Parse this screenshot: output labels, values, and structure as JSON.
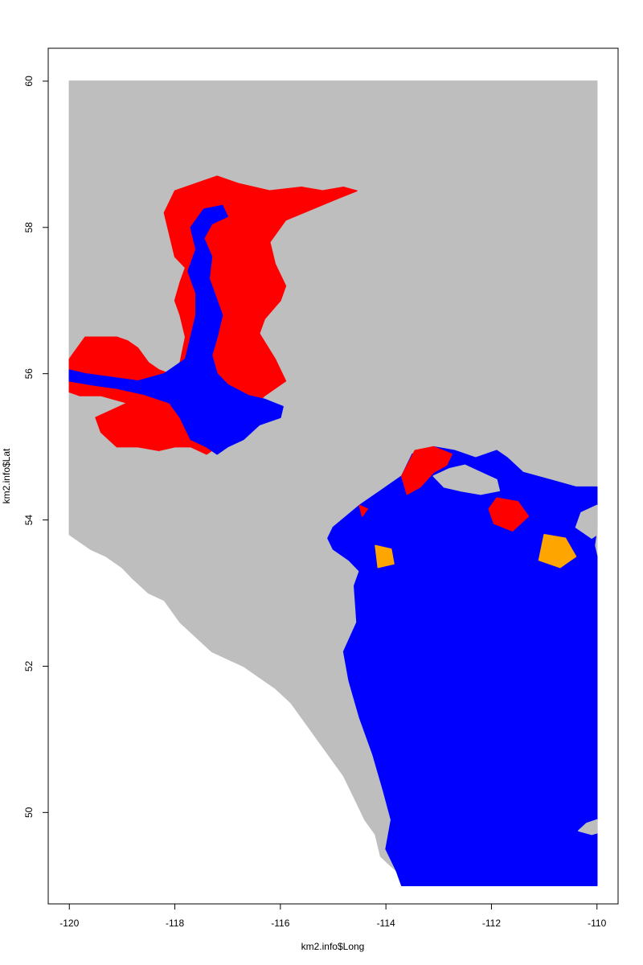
{
  "chart_data": {
    "type": "scatter",
    "title": "",
    "xlabel": "km2.info$Long",
    "ylabel": "km2.info$Lat",
    "xlim": [
      -120.4,
      -109.6
    ],
    "ylim": [
      48.75,
      60.45
    ],
    "x_ticks": [
      -120,
      -118,
      -116,
      -114,
      -112,
      -110
    ],
    "y_ticks": [
      50,
      52,
      54,
      56,
      58,
      60
    ],
    "x_tick_labels": [
      "-120",
      "-118",
      "-116",
      "-114",
      "-112",
      "-110"
    ],
    "y_tick_labels": [
      "50",
      "52",
      "54",
      "56",
      "58",
      "60"
    ],
    "grid": false,
    "legend": "none",
    "colors": {
      "background_cells": "#bebebe",
      "high": "#ff0000",
      "mid": "#ffa500",
      "low_white": "#ffffff",
      "low": "#0000ff"
    },
    "series": [
      {
        "color": "#bebebe",
        "polygon": [
          [
            -120,
            60
          ],
          [
            -110,
            60
          ],
          [
            -110,
            49
          ],
          [
            -113.7,
            49
          ],
          [
            -113.8,
            49.2
          ],
          [
            -114.1,
            49.4
          ],
          [
            -114.2,
            49.7
          ],
          [
            -114.4,
            49.9
          ],
          [
            -114.6,
            50.2
          ],
          [
            -114.8,
            50.5
          ],
          [
            -115.1,
            50.8
          ],
          [
            -115.3,
            51.0
          ],
          [
            -115.6,
            51.3
          ],
          [
            -115.8,
            51.5
          ],
          [
            -116.1,
            51.7
          ],
          [
            -116.4,
            51.85
          ],
          [
            -116.7,
            52.0
          ],
          [
            -117.0,
            52.1
          ],
          [
            -117.3,
            52.2
          ],
          [
            -117.6,
            52.4
          ],
          [
            -117.9,
            52.6
          ],
          [
            -118.2,
            52.9
          ],
          [
            -118.5,
            53.0
          ],
          [
            -118.8,
            53.2
          ],
          [
            -119.0,
            53.35
          ],
          [
            -119.3,
            53.5
          ],
          [
            -119.6,
            53.6
          ],
          [
            -119.8,
            53.7
          ],
          [
            -120,
            53.8
          ]
        ]
      },
      {
        "color": "#ff0000",
        "polygon": [
          [
            -120,
            56.2
          ],
          [
            -119.9,
            56.3
          ],
          [
            -119.7,
            56.5
          ],
          [
            -119.5,
            56.5
          ],
          [
            -119.3,
            56.5
          ],
          [
            -119.1,
            56.5
          ],
          [
            -118.9,
            56.45
          ],
          [
            -118.7,
            56.35
          ],
          [
            -118.5,
            56.15
          ],
          [
            -118.3,
            56.05
          ],
          [
            -118.1,
            56.0
          ],
          [
            -117.9,
            56.15
          ],
          [
            -117.8,
            56.5
          ],
          [
            -117.9,
            56.8
          ],
          [
            -118.0,
            57.0
          ],
          [
            -117.9,
            57.25
          ],
          [
            -117.8,
            57.45
          ],
          [
            -118.0,
            57.6
          ],
          [
            -118.1,
            57.9
          ],
          [
            -118.2,
            58.2
          ],
          [
            -118.0,
            58.5
          ],
          [
            -117.6,
            58.6
          ],
          [
            -117.2,
            58.7
          ],
          [
            -116.8,
            58.6
          ],
          [
            -116.2,
            58.5
          ],
          [
            -115.6,
            58.55
          ],
          [
            -115.2,
            58.5
          ],
          [
            -114.8,
            58.55
          ],
          [
            -114.55,
            58.5
          ],
          [
            -114.9,
            58.4
          ],
          [
            -115.4,
            58.25
          ],
          [
            -115.9,
            58.1
          ],
          [
            -116.2,
            57.8
          ],
          [
            -116.1,
            57.5
          ],
          [
            -115.9,
            57.2
          ],
          [
            -116.0,
            57.0
          ],
          [
            -116.3,
            56.75
          ],
          [
            -116.4,
            56.55
          ],
          [
            -116.1,
            56.2
          ],
          [
            -115.9,
            55.9
          ],
          [
            -116.3,
            55.7
          ],
          [
            -116.6,
            55.5
          ],
          [
            -116.9,
            55.3
          ],
          [
            -117.2,
            55.0
          ],
          [
            -117.4,
            54.9
          ],
          [
            -117.7,
            55.0
          ],
          [
            -118.0,
            55.0
          ],
          [
            -118.3,
            54.95
          ],
          [
            -118.7,
            55.0
          ],
          [
            -119.1,
            55.0
          ],
          [
            -119.4,
            55.2
          ],
          [
            -119.5,
            55.4
          ],
          [
            -119.2,
            55.5
          ],
          [
            -118.9,
            55.6
          ],
          [
            -119.4,
            55.7
          ],
          [
            -119.8,
            55.7
          ],
          [
            -120,
            55.75
          ]
        ]
      },
      {
        "color": "#0000ff",
        "polygon": [
          [
            -117.7,
            55.1
          ],
          [
            -117.4,
            55.0
          ],
          [
            -117.2,
            54.9
          ],
          [
            -117.0,
            55.0
          ],
          [
            -116.7,
            55.1
          ],
          [
            -116.4,
            55.3
          ],
          [
            -116.0,
            55.4
          ],
          [
            -115.95,
            55.55
          ],
          [
            -116.3,
            55.65
          ],
          [
            -116.6,
            55.7
          ],
          [
            -117.0,
            55.85
          ],
          [
            -117.2,
            56.0
          ],
          [
            -117.3,
            56.25
          ],
          [
            -117.2,
            56.5
          ],
          [
            -117.1,
            56.8
          ],
          [
            -117.2,
            57.0
          ],
          [
            -117.35,
            57.3
          ],
          [
            -117.3,
            57.6
          ],
          [
            -117.45,
            57.85
          ],
          [
            -117.3,
            58.05
          ],
          [
            -117.0,
            58.15
          ],
          [
            -117.1,
            58.3
          ],
          [
            -117.45,
            58.25
          ],
          [
            -117.7,
            58.0
          ],
          [
            -117.6,
            57.7
          ],
          [
            -117.75,
            57.4
          ],
          [
            -117.6,
            57.1
          ],
          [
            -117.6,
            56.8
          ],
          [
            -117.7,
            56.5
          ],
          [
            -117.8,
            56.2
          ],
          [
            -118.2,
            56.0
          ],
          [
            -118.7,
            55.9
          ],
          [
            -119.2,
            55.95
          ],
          [
            -119.7,
            56.0
          ],
          [
            -120,
            56.05
          ],
          [
            -120,
            55.9
          ],
          [
            -119.6,
            55.85
          ],
          [
            -119.1,
            55.8
          ],
          [
            -118.6,
            55.72
          ],
          [
            -118.1,
            55.6
          ],
          [
            -117.9,
            55.4
          ]
        ]
      },
      {
        "color": "#0000ff",
        "polygon": [
          [
            -115.0,
            53.9
          ],
          [
            -114.5,
            54.2
          ],
          [
            -114.1,
            54.4
          ],
          [
            -113.7,
            54.6
          ],
          [
            -113.5,
            54.9
          ],
          [
            -113.1,
            55.0
          ],
          [
            -112.7,
            54.95
          ],
          [
            -112.3,
            54.85
          ],
          [
            -111.9,
            54.95
          ],
          [
            -111.7,
            54.85
          ],
          [
            -111.4,
            54.65
          ],
          [
            -110.9,
            54.55
          ],
          [
            -110.4,
            54.45
          ],
          [
            -110.0,
            54.45
          ],
          [
            -110.0,
            53.9
          ],
          [
            -110.05,
            53.65
          ],
          [
            -110.0,
            53.5
          ],
          [
            -110.0,
            49
          ],
          [
            -113.7,
            49
          ],
          [
            -113.8,
            49.2
          ],
          [
            -114.0,
            49.5
          ],
          [
            -113.9,
            49.9
          ],
          [
            -114.05,
            50.3
          ],
          [
            -114.25,
            50.8
          ],
          [
            -114.5,
            51.3
          ],
          [
            -114.7,
            51.8
          ],
          [
            -114.8,
            52.2
          ],
          [
            -114.55,
            52.6
          ],
          [
            -114.6,
            53.1
          ],
          [
            -114.5,
            53.3
          ],
          [
            -114.7,
            53.45
          ],
          [
            -115.0,
            53.6
          ],
          [
            -115.1,
            53.75
          ]
        ]
      },
      {
        "color": "#bebebe",
        "polygon": [
          [
            -113.1,
            54.6
          ],
          [
            -112.8,
            54.7
          ],
          [
            -112.5,
            54.75
          ],
          [
            -112.2,
            54.65
          ],
          [
            -111.9,
            54.55
          ],
          [
            -111.85,
            54.4
          ],
          [
            -112.2,
            54.35
          ],
          [
            -112.6,
            54.4
          ],
          [
            -112.9,
            54.45
          ]
        ]
      },
      {
        "color": "#bebebe",
        "polygon": [
          [
            -110.0,
            54.2
          ],
          [
            -110.3,
            54.1
          ],
          [
            -110.4,
            53.9
          ],
          [
            -110.1,
            53.75
          ],
          [
            -110.0,
            53.8
          ]
        ]
      },
      {
        "color": "#bebebe",
        "polygon": [
          [
            -110.0,
            49.9
          ],
          [
            -110.2,
            49.85
          ],
          [
            -110.35,
            49.75
          ],
          [
            -110.1,
            49.7
          ],
          [
            -110.0,
            49.72
          ]
        ]
      },
      {
        "color": "#ff0000",
        "polygon": [
          [
            -113.45,
            54.95
          ],
          [
            -113.1,
            55.0
          ],
          [
            -112.75,
            54.9
          ],
          [
            -112.85,
            54.75
          ],
          [
            -113.1,
            54.65
          ],
          [
            -113.35,
            54.45
          ],
          [
            -113.6,
            54.35
          ],
          [
            -113.7,
            54.6
          ]
        ]
      },
      {
        "color": "#ff0000",
        "polygon": [
          [
            -111.9,
            54.3
          ],
          [
            -111.5,
            54.25
          ],
          [
            -111.3,
            54.05
          ],
          [
            -111.6,
            53.85
          ],
          [
            -111.95,
            53.95
          ],
          [
            -112.05,
            54.15
          ]
        ]
      },
      {
        "color": "#ffa500",
        "polygon": [
          [
            -111.0,
            53.8
          ],
          [
            -110.6,
            53.75
          ],
          [
            -110.4,
            53.5
          ],
          [
            -110.7,
            53.35
          ],
          [
            -111.1,
            53.45
          ]
        ]
      },
      {
        "color": "#ffa500",
        "polygon": [
          [
            -114.2,
            53.65
          ],
          [
            -113.9,
            53.6
          ],
          [
            -113.85,
            53.4
          ],
          [
            -114.15,
            53.35
          ]
        ]
      },
      {
        "color": "#ff0000",
        "polygon": [
          [
            -114.5,
            54.2
          ],
          [
            -114.35,
            54.15
          ],
          [
            -114.45,
            54.05
          ]
        ]
      }
    ]
  }
}
